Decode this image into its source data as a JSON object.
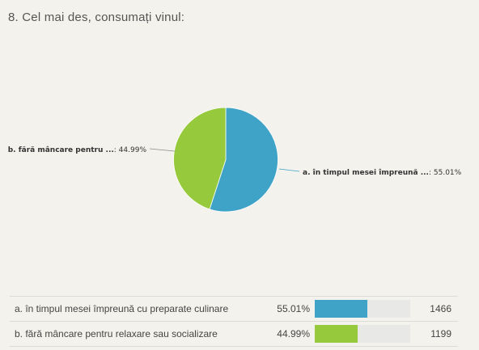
{
  "question": {
    "title": "8. Cel mai des, consumați vinul:"
  },
  "chart_data": {
    "type": "pie",
    "slices": [
      {
        "label": "a. în timpul mesei împreună cu preparate culinare",
        "short_label": "a. în timpul mesei împreună ...",
        "percent": 55.01,
        "percent_text": "55.01%",
        "count": 1466,
        "count_text": "1466",
        "color": "#3fa3c7"
      },
      {
        "label": "b. fără mâncare pentru relaxare sau socializare",
        "short_label": "b. fără mâncare pentru ...",
        "percent": 44.99,
        "percent_text": "44.99%",
        "count": 1199,
        "count_text": "1199",
        "color": "#97c93d"
      }
    ]
  },
  "colors": {
    "background": "#f3f2ec",
    "leader_line": "#8a8a8a",
    "bar_track": "#e8e8e6"
  }
}
